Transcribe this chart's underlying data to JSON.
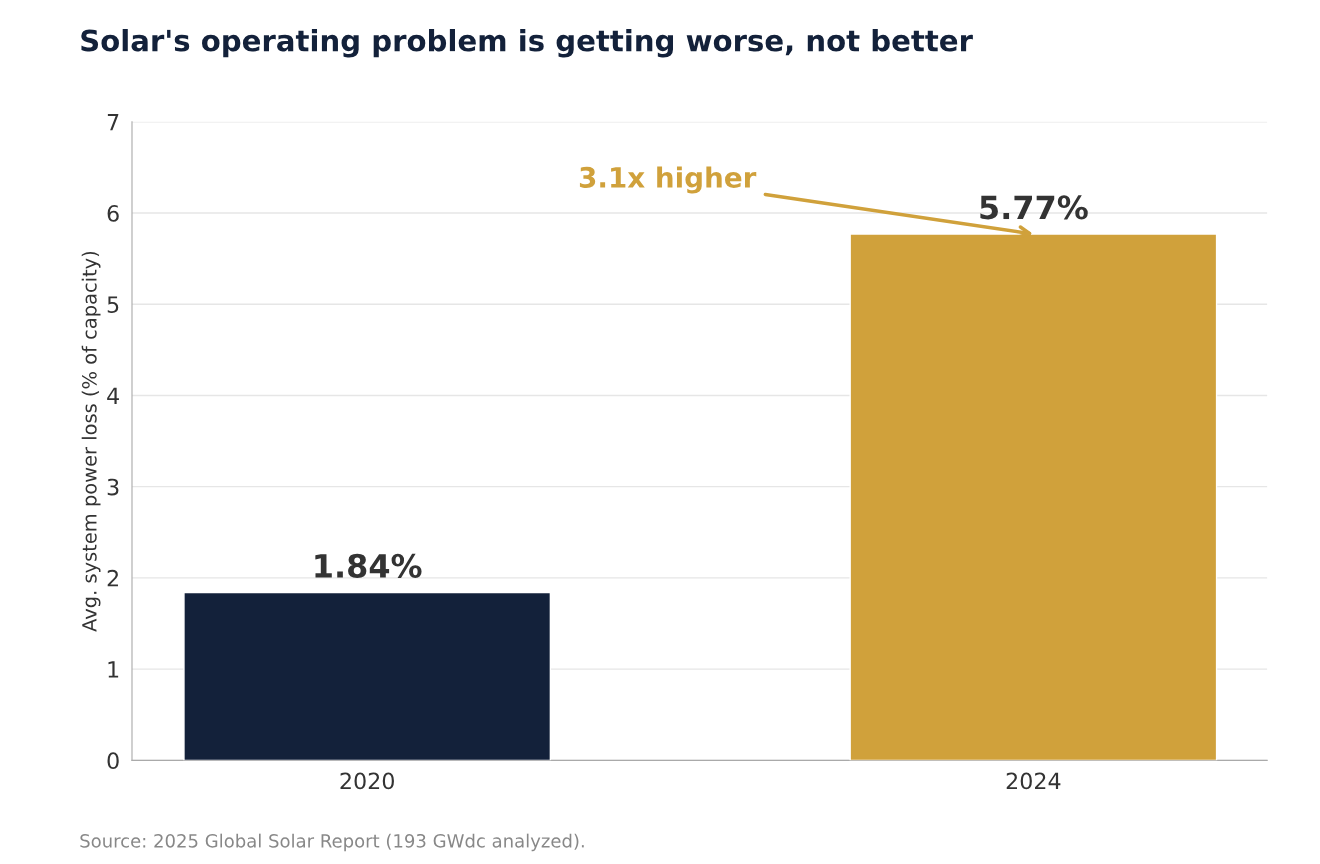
{
  "chart_data": {
    "type": "bar",
    "title": "Solar's operating problem is getting worse, not better",
    "ylabel": "Avg. system power loss (% of capacity)",
    "categories": [
      "2020",
      "2024"
    ],
    "values": [
      1.84,
      5.77
    ],
    "colors": [
      "#13213a",
      "#d0a13b"
    ],
    "value_labels": [
      "1.84%",
      "5.77%"
    ],
    "ylim": [
      0,
      7
    ],
    "yticks": [
      0,
      1,
      2,
      3,
      4,
      5,
      6,
      7
    ],
    "grid": "y",
    "annotations": [
      {
        "text": "3.1x higher",
        "x": "2024",
        "y": 5.77
      },
      "Source: 2025 Global Solar Report (193 GWdc analyzed)."
    ]
  }
}
